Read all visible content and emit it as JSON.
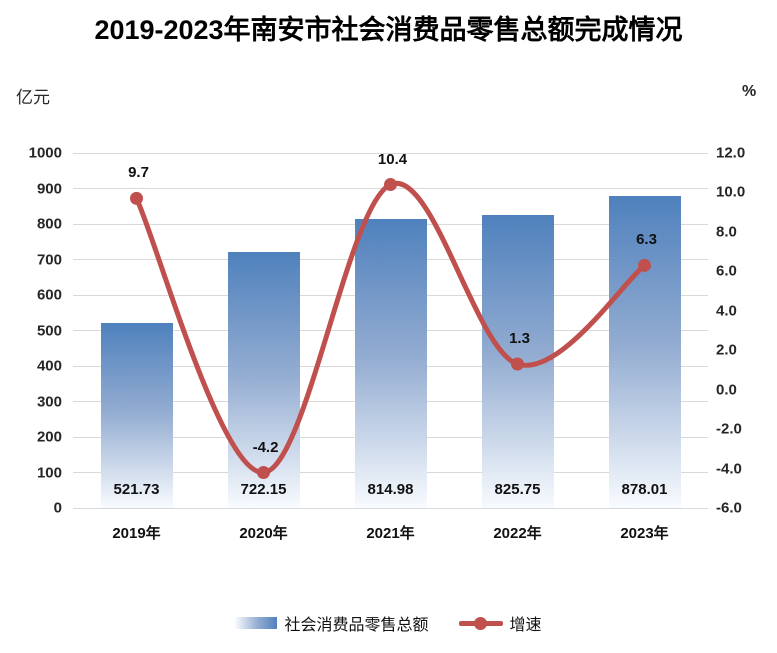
{
  "title": "2019-2023年南安市社会消费品零售总额完成情况",
  "left_axis": {
    "unit": "亿元",
    "ticks": [
      "1000",
      "900",
      "800",
      "700",
      "600",
      "500",
      "400",
      "300",
      "200",
      "100",
      "0"
    ]
  },
  "right_axis": {
    "unit": "%",
    "ticks": [
      "12.0",
      "10.0",
      "8.0",
      "6.0",
      "4.0",
      "2.0",
      "0.0",
      "-2.0",
      "-4.0",
      "-6.0"
    ]
  },
  "legend": {
    "items": [
      {
        "swatch": "bar-gradient-swatch",
        "label": "社会消费品零售总额"
      },
      {
        "swatch": "line-marker-swatch",
        "label": "增速"
      }
    ]
  },
  "colors": {
    "bar_top": "#4f81bd",
    "bar_mid": "#93acd1",
    "bar_bottom": "#f8fbfe",
    "line": "#c0504d",
    "gridline": "#d9d9d9",
    "label_text": "#111111"
  },
  "chart_data": {
    "type": "combo-bar-line",
    "categories": [
      "2019年",
      "2020年",
      "2021年",
      "2022年",
      "2023年"
    ],
    "series": [
      {
        "name": "社会消费品零售总额",
        "type": "bar",
        "axis": "left",
        "values": [
          521.73,
          722.15,
          814.98,
          825.75,
          878.01
        ],
        "labels": [
          "521.73",
          "722.15",
          "814.98",
          "825.75",
          "878.01"
        ]
      },
      {
        "name": "增速",
        "type": "line",
        "axis": "right",
        "values": [
          9.7,
          -4.2,
          10.4,
          1.3,
          6.3
        ],
        "labels": [
          "9.7",
          "-4.2",
          "10.4",
          "1.3",
          "6.3"
        ]
      }
    ],
    "left_axis_range": [
      0,
      1000
    ],
    "right_axis_range": [
      -6,
      12
    ],
    "grid": true,
    "line_smoothed": true,
    "legend_position": "bottom"
  }
}
